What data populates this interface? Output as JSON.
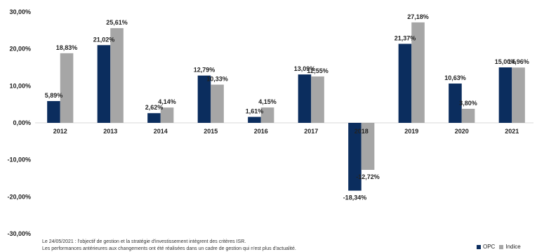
{
  "chart_data": {
    "type": "bar",
    "categories": [
      "2012",
      "2013",
      "2014",
      "2015",
      "2016",
      "2017",
      "2018",
      "2019",
      "2020",
      "2021"
    ],
    "series": [
      {
        "name": "OPC",
        "color": "#0b2d5e",
        "values": [
          5.89,
          21.02,
          2.62,
          12.79,
          1.61,
          13.09,
          -18.34,
          21.37,
          10.63,
          15.0
        ],
        "labels": [
          "5,89%",
          "21,02%",
          "2,62%",
          "12,79%",
          "1,61%",
          "13,09%",
          "-18,34%",
          "21,37%",
          "10,63%",
          "15,00%"
        ]
      },
      {
        "name": "Indice",
        "color": "#a6a6a6",
        "values": [
          18.83,
          25.61,
          4.14,
          10.33,
          4.15,
          12.55,
          -12.72,
          27.18,
          3.8,
          14.96
        ],
        "labels": [
          "18,83%",
          "25,61%",
          "4,14%",
          "10,33%",
          "4,15%",
          "12,55%",
          "-12,72%",
          "27,18%",
          "3,80%",
          "14,96%"
        ]
      }
    ],
    "ylim": [
      -30,
      30
    ],
    "yticks": [
      30,
      20,
      10,
      0,
      -10,
      -20,
      -30
    ],
    "ytick_labels": [
      "30,00%",
      "20,00%",
      "10,00%",
      "0,00%",
      "-10,00%",
      "-20,00%",
      "-30,00%"
    ],
    "grid": false,
    "legend_position": "bottom-right"
  },
  "footnotes": [
    "Le 24/05/2021 : l'objectif de gestion et la stratégie d'investissement intègrent des critères ISR.",
    "Les performances antérieures aux changements ont été réalisées dans un cadre de gestion qui n'est plus d'actualité."
  ],
  "legend": {
    "opc": "OPC",
    "indice": "Indice"
  }
}
